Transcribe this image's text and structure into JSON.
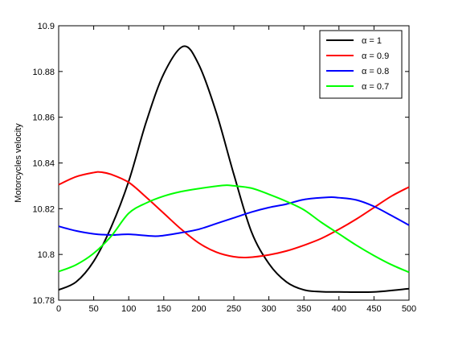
{
  "chart_data": {
    "type": "line",
    "title": "",
    "xlabel": "",
    "ylabel": "Motorcycles velocity",
    "xlim": [
      0,
      500
    ],
    "ylim": [
      10.78,
      10.9
    ],
    "xticks": [
      0,
      50,
      100,
      150,
      200,
      250,
      300,
      350,
      400,
      450,
      500
    ],
    "xtick_labels": [
      "0",
      "50",
      "100",
      "150",
      "200",
      "250",
      "300",
      "350",
      "400",
      "450",
      "500"
    ],
    "yticks": [
      10.78,
      10.8,
      10.82,
      10.84,
      10.86,
      10.88,
      10.9
    ],
    "ytick_labels": [
      "10.78",
      "10.8",
      "10.82",
      "10.84",
      "10.86",
      "10.88",
      "10.9"
    ],
    "grid": false,
    "legend_position": "top-right",
    "series": [
      {
        "name": "α = 1",
        "color": "#000000",
        "x": [
          0,
          25,
          50,
          75,
          100,
          125,
          150,
          178,
          200,
          225,
          250,
          275,
          300,
          325,
          350,
          375,
          400,
          450,
          500
        ],
        "y": [
          10.7845,
          10.788,
          10.797,
          10.812,
          10.832,
          10.858,
          10.879,
          10.891,
          10.883,
          10.862,
          10.835,
          10.81,
          10.796,
          10.788,
          10.7845,
          10.7837,
          10.7836,
          10.7836,
          10.785
        ]
      },
      {
        "name": "α = 0.9",
        "color": "#ff0000",
        "x": [
          0,
          25,
          50,
          60,
          75,
          100,
          125,
          150,
          175,
          200,
          225,
          250,
          270,
          300,
          325,
          350,
          375,
          400,
          425,
          450,
          475,
          500
        ],
        "y": [
          10.8305,
          10.834,
          10.8358,
          10.836,
          10.835,
          10.8315,
          10.825,
          10.818,
          10.811,
          10.805,
          10.801,
          10.799,
          10.7987,
          10.7998,
          10.8015,
          10.804,
          10.807,
          10.811,
          10.8155,
          10.8205,
          10.8255,
          10.8295
        ]
      },
      {
        "name": "α = 0.8",
        "color": "#0000ff",
        "x": [
          0,
          25,
          50,
          75,
          100,
          135,
          150,
          175,
          200,
          225,
          250,
          275,
          300,
          325,
          350,
          385,
          400,
          425,
          450,
          475,
          500
        ],
        "y": [
          10.8123,
          10.8103,
          10.809,
          10.8085,
          10.8088,
          10.808,
          10.8083,
          10.8095,
          10.811,
          10.8135,
          10.816,
          10.8185,
          10.8205,
          10.822,
          10.824,
          10.825,
          10.8248,
          10.8238,
          10.821,
          10.817,
          10.8128
        ]
      },
      {
        "name": "α = 0.7",
        "color": "#00ff00",
        "x": [
          0,
          25,
          50,
          75,
          100,
          125,
          150,
          175,
          200,
          235,
          250,
          275,
          300,
          325,
          350,
          375,
          400,
          425,
          450,
          475,
          500
        ],
        "y": [
          10.7925,
          10.7955,
          10.8005,
          10.808,
          10.818,
          10.8225,
          10.8255,
          10.8275,
          10.8288,
          10.8302,
          10.83,
          10.829,
          10.8263,
          10.8232,
          10.8195,
          10.814,
          10.809,
          10.804,
          10.7995,
          10.7955,
          10.7922
        ]
      }
    ]
  }
}
